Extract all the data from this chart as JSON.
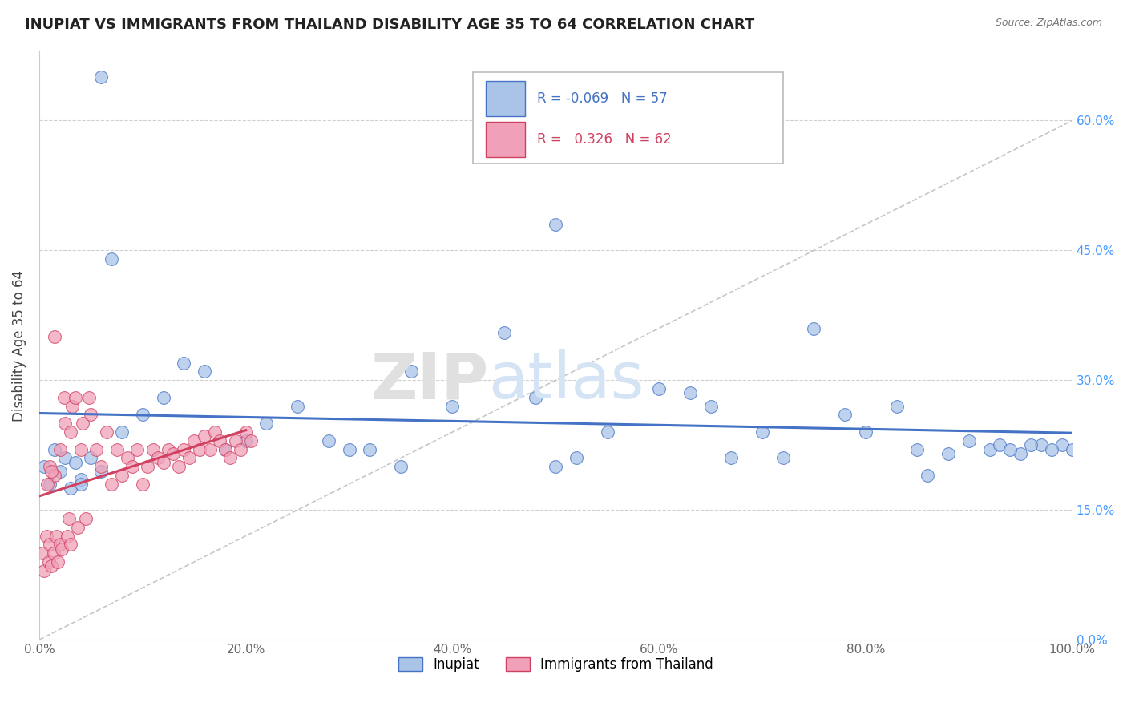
{
  "title": "INUPIAT VS IMMIGRANTS FROM THAILAND DISABILITY AGE 35 TO 64 CORRELATION CHART",
  "source": "Source: ZipAtlas.com",
  "ylabel": "Disability Age 35 to 64",
  "legend_labels": [
    "Inupiat",
    "Immigrants from Thailand"
  ],
  "r_inupiat": -0.069,
  "n_inupiat": 57,
  "r_thailand": 0.326,
  "n_thailand": 62,
  "color_inupiat": "#aac4e8",
  "color_thailand": "#f0a0b8",
  "line_color_inupiat": "#4472c4",
  "line_color_thailand": "#d04060",
  "xmin": 0.0,
  "xmax": 100.0,
  "ymin": 0.0,
  "ymax": 68.0,
  "yticks": [
    0,
    15,
    30,
    45,
    60
  ],
  "xticks": [
    0,
    20,
    40,
    60,
    80,
    100
  ],
  "background_color": "#ffffff",
  "inupiat_x": [
    0.5,
    1.0,
    1.5,
    2.0,
    2.5,
    3.0,
    3.5,
    4.0,
    5.0,
    6.0,
    7.0,
    8.0,
    10.0,
    12.0,
    14.0,
    16.0,
    18.0,
    20.0,
    22.0,
    25.0,
    28.0,
    32.0,
    36.0,
    40.0,
    45.0,
    50.0,
    55.0,
    60.0,
    65.0,
    70.0,
    75.0,
    80.0,
    85.0,
    88.0,
    90.0,
    92.0,
    95.0,
    97.0,
    99.0,
    100.0,
    30.0,
    48.0,
    63.0,
    78.0,
    83.0,
    93.0,
    96.0,
    98.0,
    6.0,
    50.0,
    35.0,
    52.0,
    67.0,
    72.0,
    86.0,
    94.0,
    4.0
  ],
  "inupiat_y": [
    20.0,
    18.0,
    22.0,
    19.5,
    21.0,
    17.5,
    20.5,
    18.5,
    21.0,
    19.5,
    44.0,
    24.0,
    26.0,
    28.0,
    32.0,
    31.0,
    22.0,
    23.0,
    25.0,
    27.0,
    23.0,
    22.0,
    31.0,
    27.0,
    35.5,
    20.0,
    24.0,
    29.0,
    27.0,
    24.0,
    36.0,
    24.0,
    22.0,
    21.5,
    23.0,
    22.0,
    21.5,
    22.5,
    22.5,
    22.0,
    22.0,
    28.0,
    28.5,
    26.0,
    27.0,
    22.5,
    22.5,
    22.0,
    65.0,
    48.0,
    20.0,
    21.0,
    21.0,
    21.0,
    19.0,
    22.0,
    18.0
  ],
  "thailand_x": [
    0.3,
    0.5,
    0.7,
    0.9,
    1.0,
    1.2,
    1.4,
    1.5,
    1.6,
    1.8,
    2.0,
    2.2,
    2.4,
    2.5,
    2.7,
    2.9,
    3.0,
    3.2,
    3.5,
    3.7,
    4.0,
    4.2,
    4.5,
    4.8,
    5.0,
    5.5,
    6.0,
    6.5,
    7.0,
    7.5,
    8.0,
    8.5,
    9.0,
    9.5,
    10.0,
    10.5,
    11.0,
    11.5,
    12.0,
    12.5,
    13.0,
    13.5,
    14.0,
    14.5,
    15.0,
    15.5,
    16.0,
    16.5,
    17.0,
    17.5,
    18.0,
    18.5,
    19.0,
    19.5,
    20.0,
    20.5,
    1.0,
    2.0,
    3.0,
    1.5,
    0.8,
    1.2
  ],
  "thailand_y": [
    10.0,
    8.0,
    12.0,
    9.0,
    11.0,
    8.5,
    10.0,
    35.0,
    12.0,
    9.0,
    11.0,
    10.5,
    28.0,
    25.0,
    12.0,
    14.0,
    11.0,
    27.0,
    28.0,
    13.0,
    22.0,
    25.0,
    14.0,
    28.0,
    26.0,
    22.0,
    20.0,
    24.0,
    18.0,
    22.0,
    19.0,
    21.0,
    20.0,
    22.0,
    18.0,
    20.0,
    22.0,
    21.0,
    20.5,
    22.0,
    21.5,
    20.0,
    22.0,
    21.0,
    23.0,
    22.0,
    23.5,
    22.0,
    24.0,
    23.0,
    22.0,
    21.0,
    23.0,
    22.0,
    24.0,
    23.0,
    20.0,
    22.0,
    24.0,
    19.0,
    18.0,
    19.5
  ]
}
